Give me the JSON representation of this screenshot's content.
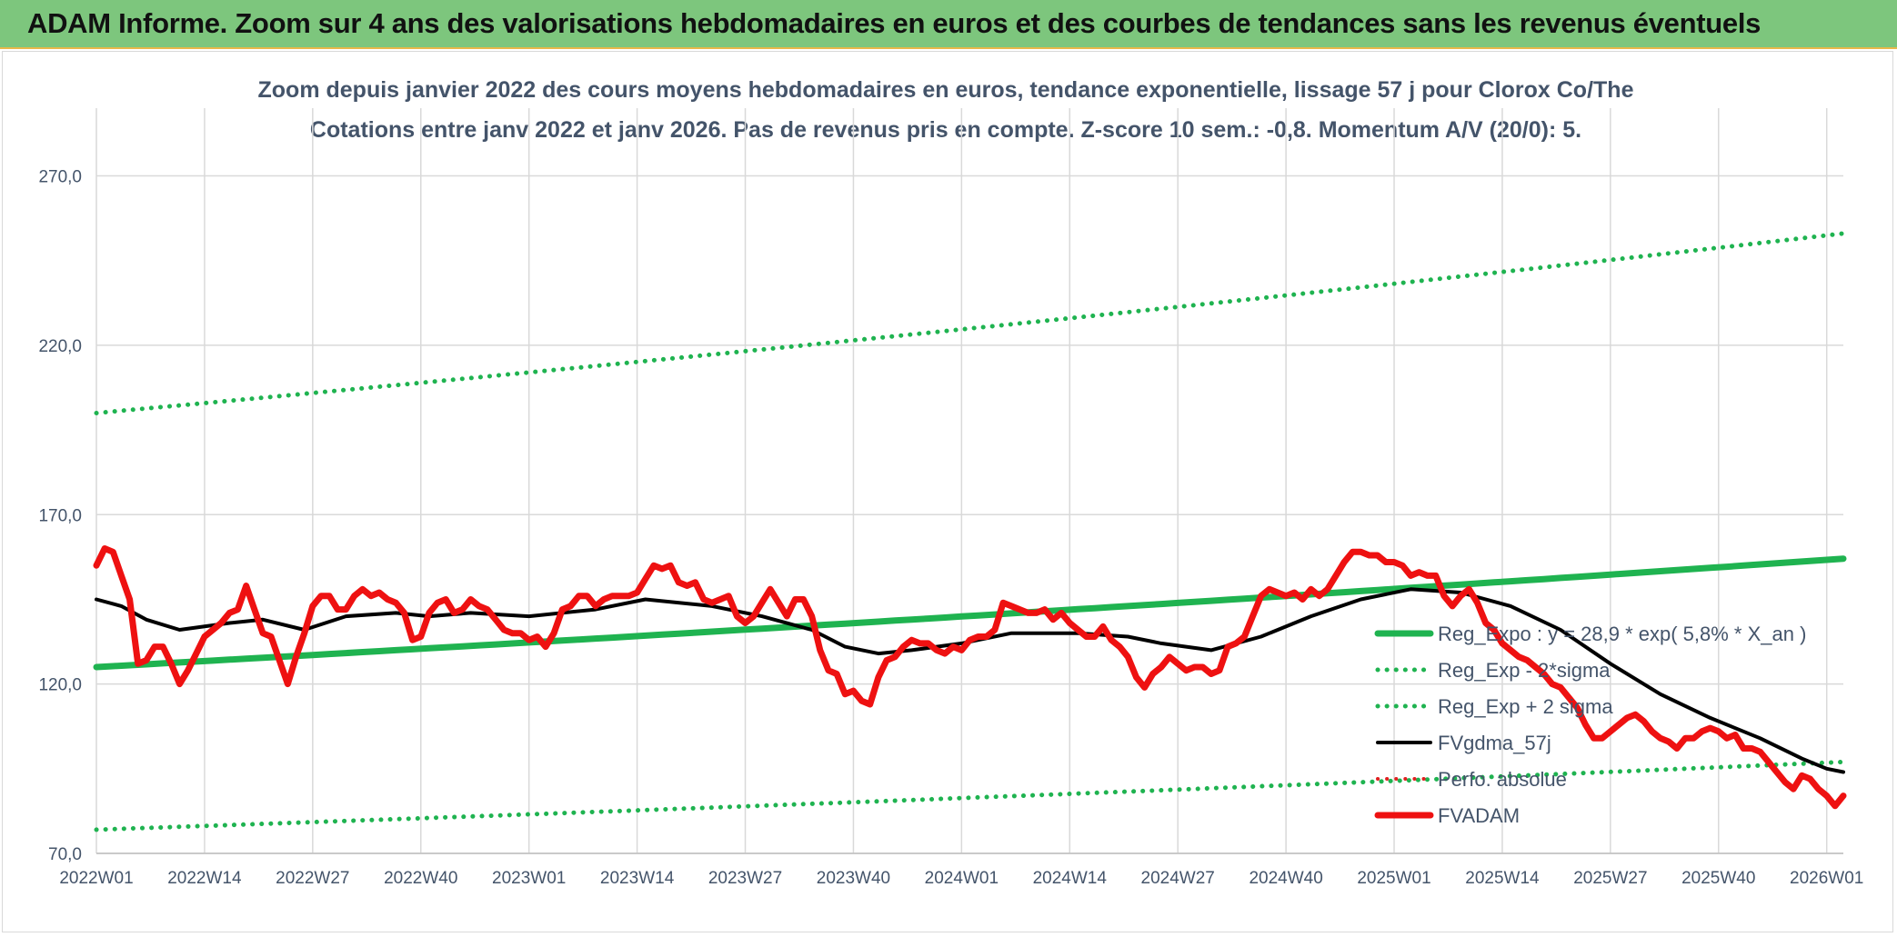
{
  "banner": {
    "title": "ADAM Informe. Zoom sur 4 ans des valorisations hebdomadaires en euros et des courbes de tendances sans les revenus éventuels"
  },
  "chart_data": {
    "type": "line",
    "title": "Zoom depuis janvier 2022 des cours moyens hebdomadaires en euros, tendance exponentielle, lissage 57 j pour Clorox Co/The",
    "subtitle": "Cotations entre janv 2022 et janv 2026. Pas de revenus pris en compte. Z-score 10 sem.: -0,8. Momentum A/V (20/0): 5.",
    "xlabel": "",
    "ylabel": "",
    "ylim": [
      70,
      290
    ],
    "yticks": [
      70,
      120,
      170,
      220,
      270
    ],
    "ytick_labels": [
      "70,0",
      "120,0",
      "170,0",
      "220,0",
      "270,0"
    ],
    "x_count": 210,
    "xticks": [
      0,
      13,
      26,
      39,
      52,
      65,
      78,
      91,
      104,
      117,
      130,
      143,
      156,
      169,
      182,
      195,
      208
    ],
    "xtick_labels": [
      "2022W01",
      "2022W14",
      "2022W27",
      "2022W40",
      "2023W01",
      "2023W14",
      "2023W27",
      "2023W40",
      "2024W01",
      "2024W14",
      "2024W27",
      "2024W40",
      "2025W01",
      "2025W14",
      "2025W27",
      "2025W40",
      "2026W01"
    ],
    "legend_position": "right",
    "series": [
      {
        "name": "Reg_Expo : y = 28,9 * exp( 5,8% *  X_an )",
        "style": "solid",
        "color": "#1fb350",
        "width": 7,
        "start": 125,
        "end": 157
      },
      {
        "name": "Reg_Exp - 2*sigma",
        "style": "dotted",
        "color": "#1fb350",
        "width": 5,
        "start": 77,
        "end": 97
      },
      {
        "name": "Reg_Exp + 2 sigma",
        "style": "dotted",
        "color": "#1fb350",
        "width": 5,
        "start": 200,
        "end": 253
      },
      {
        "name": "FVgdma_57j",
        "style": "solid",
        "color": "#000000",
        "width": 4,
        "keypoints": [
          [
            0,
            145
          ],
          [
            3,
            143
          ],
          [
            6,
            139
          ],
          [
            10,
            136
          ],
          [
            16,
            138
          ],
          [
            20,
            139
          ],
          [
            25,
            136
          ],
          [
            30,
            140
          ],
          [
            36,
            141
          ],
          [
            40,
            140
          ],
          [
            45,
            141
          ],
          [
            52,
            140
          ],
          [
            60,
            142
          ],
          [
            66,
            145
          ],
          [
            74,
            143
          ],
          [
            80,
            140
          ],
          [
            86,
            136
          ],
          [
            90,
            131
          ],
          [
            94,
            129
          ],
          [
            98,
            130
          ],
          [
            104,
            132
          ],
          [
            110,
            135
          ],
          [
            118,
            135
          ],
          [
            124,
            134
          ],
          [
            128,
            132
          ],
          [
            134,
            130
          ],
          [
            140,
            134
          ],
          [
            146,
            140
          ],
          [
            152,
            145
          ],
          [
            158,
            148
          ],
          [
            164,
            147
          ],
          [
            170,
            143
          ],
          [
            176,
            136
          ],
          [
            182,
            126
          ],
          [
            188,
            117
          ],
          [
            194,
            110
          ],
          [
            200,
            104
          ],
          [
            205,
            98
          ],
          [
            208,
            95
          ],
          [
            210,
            94
          ]
        ]
      },
      {
        "name": "Perfo. absolue",
        "style": "dotted",
        "color": "#e02020",
        "width": 4,
        "values": []
      },
      {
        "name": "FVADAM",
        "style": "solid",
        "color": "#ee1111",
        "width": 7,
        "keypoints": [
          [
            0,
            155
          ],
          [
            1,
            160
          ],
          [
            2,
            159
          ],
          [
            3,
            152
          ],
          [
            4,
            145
          ],
          [
            5,
            126
          ],
          [
            6,
            127
          ],
          [
            7,
            131
          ],
          [
            8,
            131
          ],
          [
            9,
            126
          ],
          [
            10,
            120
          ],
          [
            11,
            124
          ],
          [
            12,
            129
          ],
          [
            13,
            134
          ],
          [
            14,
            136
          ],
          [
            15,
            138
          ],
          [
            16,
            141
          ],
          [
            17,
            142
          ],
          [
            18,
            149
          ],
          [
            19,
            142
          ],
          [
            20,
            135
          ],
          [
            21,
            134
          ],
          [
            22,
            127
          ],
          [
            23,
            120
          ],
          [
            24,
            128
          ],
          [
            25,
            135
          ],
          [
            26,
            143
          ],
          [
            27,
            146
          ],
          [
            28,
            146
          ],
          [
            29,
            142
          ],
          [
            30,
            142
          ],
          [
            31,
            146
          ],
          [
            32,
            148
          ],
          [
            33,
            146
          ],
          [
            34,
            147
          ],
          [
            35,
            145
          ],
          [
            36,
            144
          ],
          [
            37,
            141
          ],
          [
            38,
            133
          ],
          [
            39,
            134
          ],
          [
            40,
            141
          ],
          [
            41,
            144
          ],
          [
            42,
            145
          ],
          [
            43,
            141
          ],
          [
            44,
            142
          ],
          [
            45,
            145
          ],
          [
            46,
            143
          ],
          [
            47,
            142
          ],
          [
            48,
            139
          ],
          [
            49,
            136
          ],
          [
            50,
            135
          ],
          [
            51,
            135
          ],
          [
            52,
            133
          ],
          [
            53,
            134
          ],
          [
            54,
            131
          ],
          [
            55,
            135
          ],
          [
            56,
            142
          ],
          [
            57,
            143
          ],
          [
            58,
            146
          ],
          [
            59,
            146
          ],
          [
            60,
            143
          ],
          [
            61,
            145
          ],
          [
            62,
            146
          ],
          [
            63,
            146
          ],
          [
            64,
            146
          ],
          [
            65,
            147
          ],
          [
            66,
            151
          ],
          [
            67,
            155
          ],
          [
            68,
            154
          ],
          [
            69,
            155
          ],
          [
            70,
            150
          ],
          [
            71,
            149
          ],
          [
            72,
            150
          ],
          [
            73,
            145
          ],
          [
            74,
            144
          ],
          [
            75,
            145
          ],
          [
            76,
            146
          ],
          [
            77,
            140
          ],
          [
            78,
            138
          ],
          [
            79,
            140
          ],
          [
            80,
            144
          ],
          [
            81,
            148
          ],
          [
            82,
            144
          ],
          [
            83,
            140
          ],
          [
            84,
            145
          ],
          [
            85,
            145
          ],
          [
            86,
            140
          ],
          [
            87,
            130
          ],
          [
            88,
            124
          ],
          [
            89,
            123
          ],
          [
            90,
            117
          ],
          [
            91,
            118
          ],
          [
            92,
            115
          ],
          [
            93,
            114
          ],
          [
            94,
            122
          ],
          [
            95,
            127
          ],
          [
            96,
            128
          ],
          [
            97,
            131
          ],
          [
            98,
            133
          ],
          [
            99,
            132
          ],
          [
            100,
            132
          ],
          [
            101,
            130
          ],
          [
            102,
            129
          ],
          [
            103,
            131
          ],
          [
            104,
            130
          ],
          [
            105,
            133
          ],
          [
            106,
            134
          ],
          [
            107,
            134
          ],
          [
            108,
            136
          ],
          [
            109,
            144
          ],
          [
            110,
            143
          ],
          [
            111,
            142
          ],
          [
            112,
            141
          ],
          [
            113,
            141
          ],
          [
            114,
            142
          ],
          [
            115,
            139
          ],
          [
            116,
            141
          ],
          [
            117,
            138
          ],
          [
            118,
            136
          ],
          [
            119,
            134
          ],
          [
            120,
            134
          ],
          [
            121,
            137
          ],
          [
            122,
            133
          ],
          [
            123,
            131
          ],
          [
            124,
            128
          ],
          [
            125,
            122
          ],
          [
            126,
            119
          ],
          [
            127,
            123
          ],
          [
            128,
            125
          ],
          [
            129,
            128
          ],
          [
            130,
            126
          ],
          [
            131,
            124
          ],
          [
            132,
            125
          ],
          [
            133,
            125
          ],
          [
            134,
            123
          ],
          [
            135,
            124
          ],
          [
            136,
            131
          ],
          [
            137,
            132
          ],
          [
            138,
            134
          ],
          [
            139,
            140
          ],
          [
            140,
            146
          ],
          [
            141,
            148
          ],
          [
            142,
            147
          ],
          [
            143,
            146
          ],
          [
            144,
            147
          ],
          [
            145,
            145
          ],
          [
            146,
            148
          ],
          [
            147,
            146
          ],
          [
            148,
            148
          ],
          [
            149,
            152
          ],
          [
            150,
            156
          ],
          [
            151,
            159
          ],
          [
            152,
            159
          ],
          [
            153,
            158
          ],
          [
            154,
            158
          ],
          [
            155,
            156
          ],
          [
            156,
            156
          ],
          [
            157,
            155
          ],
          [
            158,
            152
          ],
          [
            159,
            153
          ],
          [
            160,
            152
          ],
          [
            161,
            152
          ],
          [
            162,
            146
          ],
          [
            163,
            143
          ],
          [
            164,
            146
          ],
          [
            165,
            148
          ],
          [
            166,
            144
          ],
          [
            167,
            138
          ],
          [
            168,
            136
          ],
          [
            169,
            132
          ],
          [
            170,
            130
          ],
          [
            171,
            128
          ],
          [
            172,
            127
          ],
          [
            173,
            125
          ],
          [
            174,
            123
          ],
          [
            175,
            120
          ],
          [
            176,
            119
          ],
          [
            177,
            116
          ],
          [
            178,
            113
          ],
          [
            179,
            108
          ],
          [
            180,
            104
          ],
          [
            181,
            104
          ],
          [
            182,
            106
          ],
          [
            183,
            108
          ],
          [
            184,
            110
          ],
          [
            185,
            111
          ],
          [
            186,
            109
          ],
          [
            187,
            106
          ],
          [
            188,
            104
          ],
          [
            189,
            103
          ],
          [
            190,
            101
          ],
          [
            191,
            104
          ],
          [
            192,
            104
          ],
          [
            193,
            106
          ],
          [
            194,
            107
          ],
          [
            195,
            106
          ],
          [
            196,
            104
          ],
          [
            197,
            105
          ],
          [
            198,
            101
          ],
          [
            199,
            101
          ],
          [
            200,
            100
          ],
          [
            201,
            97
          ],
          [
            202,
            94
          ],
          [
            203,
            91
          ],
          [
            204,
            89
          ],
          [
            205,
            93
          ],
          [
            206,
            92
          ],
          [
            207,
            89
          ],
          [
            208,
            87
          ],
          [
            209,
            84
          ],
          [
            210,
            87
          ]
        ]
      }
    ]
  }
}
